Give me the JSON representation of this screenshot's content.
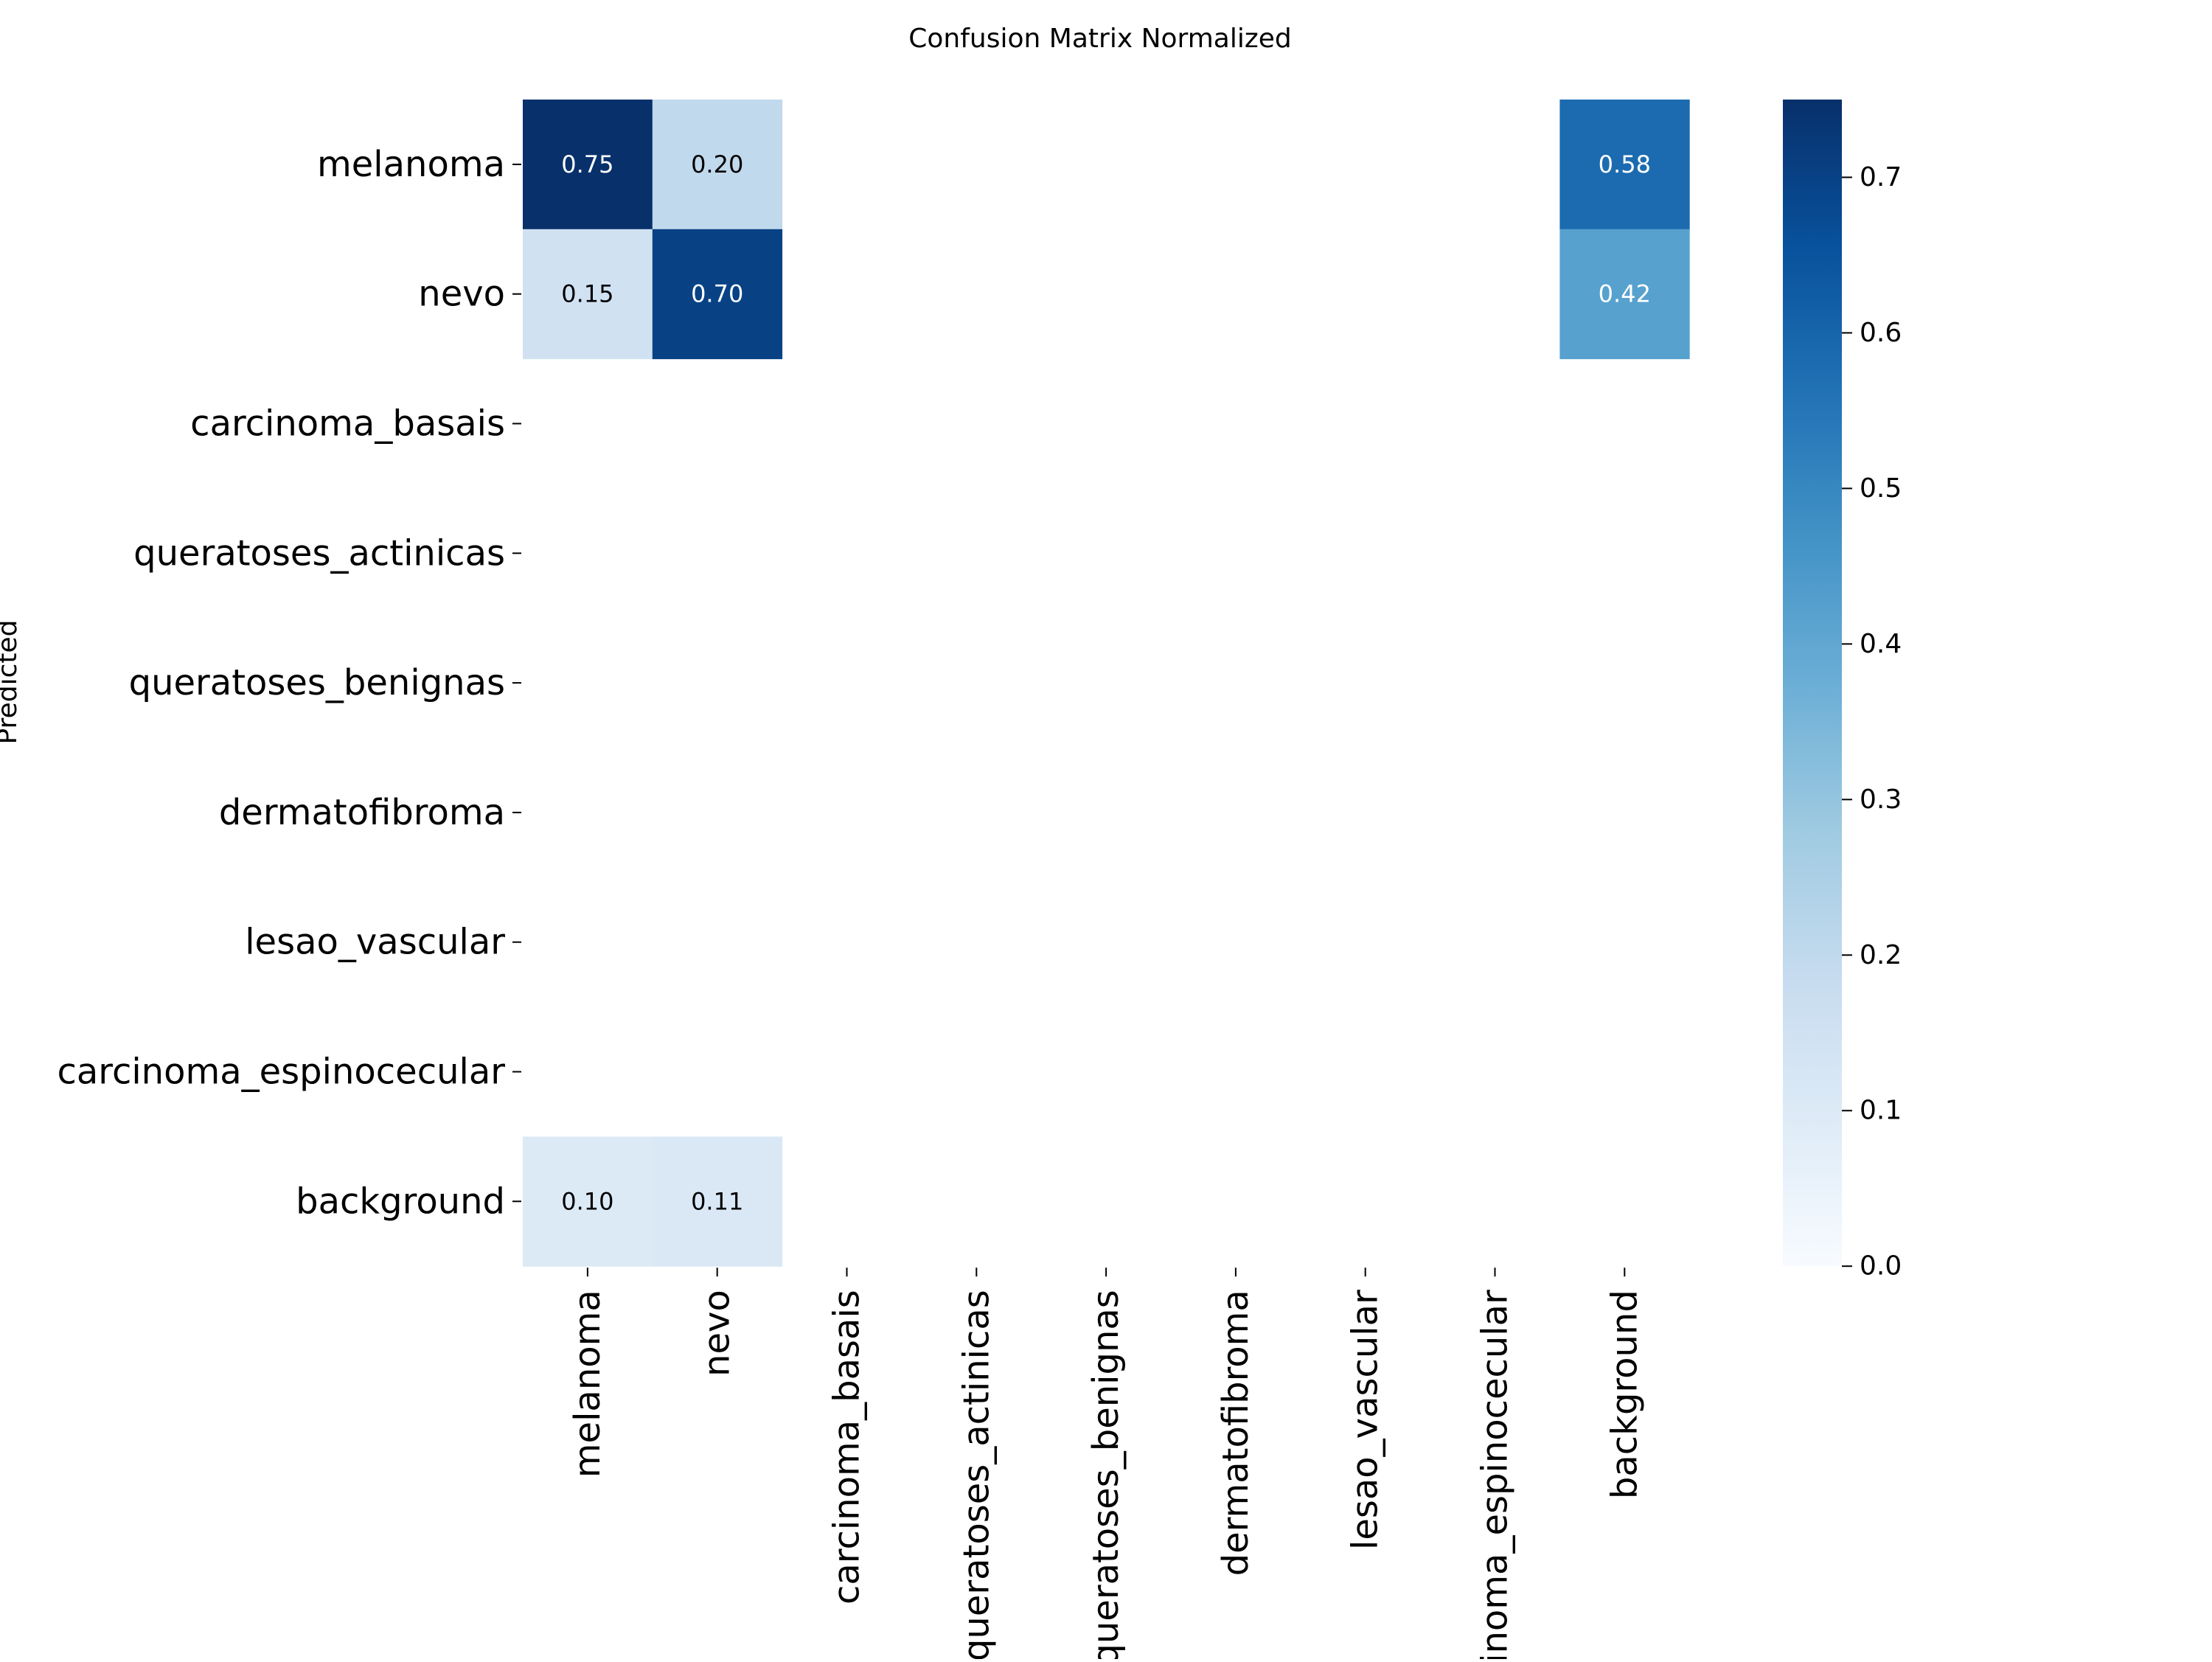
{
  "chart_data": {
    "type": "heatmap",
    "title": "Confusion Matrix Normalized",
    "xlabel": "",
    "ylabel": "Predicted",
    "x_categories": [
      "melanoma",
      "nevo",
      "carcinoma_basais",
      "queratoses_actinicas",
      "queratoses_benignas",
      "dermatofibroma",
      "lesao_vascular",
      "carcinoma_espinocecular",
      "background"
    ],
    "y_categories": [
      "melanoma",
      "nevo",
      "carcinoma_basais",
      "queratoses_actinicas",
      "queratoses_benignas",
      "dermatofibroma",
      "lesao_vascular",
      "carcinoma_espinocecular",
      "background"
    ],
    "values": [
      [
        0.75,
        0.2,
        null,
        null,
        null,
        null,
        null,
        null,
        0.58
      ],
      [
        0.15,
        0.7,
        null,
        null,
        null,
        null,
        null,
        null,
        0.42
      ],
      [
        null,
        null,
        null,
        null,
        null,
        null,
        null,
        null,
        null
      ],
      [
        null,
        null,
        null,
        null,
        null,
        null,
        null,
        null,
        null
      ],
      [
        null,
        null,
        null,
        null,
        null,
        null,
        null,
        null,
        null
      ],
      [
        null,
        null,
        null,
        null,
        null,
        null,
        null,
        null,
        null
      ],
      [
        null,
        null,
        null,
        null,
        null,
        null,
        null,
        null,
        null
      ],
      [
        null,
        null,
        null,
        null,
        null,
        null,
        null,
        null,
        null
      ],
      [
        0.1,
        0.11,
        null,
        null,
        null,
        null,
        null,
        null,
        null
      ]
    ],
    "value_labels": [
      [
        "0.75",
        "0.20",
        "",
        "",
        "",
        "",
        "",
        "",
        "0.58"
      ],
      [
        "0.15",
        "0.70",
        "",
        "",
        "",
        "",
        "",
        "",
        "0.42"
      ],
      [
        "",
        "",
        "",
        "",
        "",
        "",
        "",
        "",
        ""
      ],
      [
        "",
        "",
        "",
        "",
        "",
        "",
        "",
        "",
        ""
      ],
      [
        "",
        "",
        "",
        "",
        "",
        "",
        "",
        "",
        ""
      ],
      [
        "",
        "",
        "",
        "",
        "",
        "",
        "",
        "",
        ""
      ],
      [
        "",
        "",
        "",
        "",
        "",
        "",
        "",
        "",
        ""
      ],
      [
        "",
        "",
        "",
        "",
        "",
        "",
        "",
        "",
        ""
      ],
      [
        "0.10",
        "0.11",
        "",
        "",
        "",
        "",
        "",
        "",
        ""
      ]
    ],
    "colormap": "Blues",
    "colorbar": {
      "range": [
        0.0,
        0.75
      ],
      "ticks": [
        0.0,
        0.1,
        0.2,
        0.3,
        0.4,
        0.5,
        0.6,
        0.7
      ],
      "tick_labels": [
        "0.0",
        "0.1",
        "0.2",
        "0.3",
        "0.4",
        "0.5",
        "0.6",
        "0.7"
      ]
    },
    "grid": false,
    "legend": "colorbar-right"
  },
  "colors": {
    "text_dark": "#000000",
    "text_light": "#ffffff",
    "blues": [
      "#f7fbff",
      "#deebf7",
      "#c6dbef",
      "#9ecae1",
      "#6baed6",
      "#4292c6",
      "#2171b5",
      "#08519c",
      "#08306b"
    ]
  }
}
